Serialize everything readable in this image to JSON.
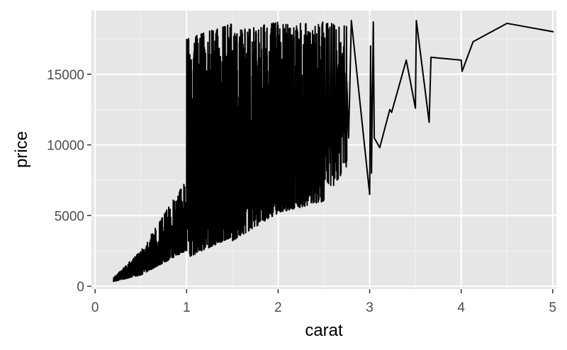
{
  "chart_data": {
    "type": "line",
    "xlabel": "carat",
    "ylabel": "price",
    "xlim": [
      -0.04,
      5.04
    ],
    "ylim": [
      -200,
      19500
    ],
    "x_ticks": [
      0,
      1,
      2,
      3,
      4,
      5
    ],
    "y_ticks": [
      0,
      5000,
      10000,
      15000
    ],
    "grid": true,
    "panel_background": "#e6e6e6",
    "line_color": "#000000",
    "dense_bands": [
      {
        "x_start": 0.2,
        "x_end": 0.5,
        "lower_start": 330,
        "lower_end": 800,
        "upper_start": 600,
        "upper_end": 2500,
        "cycles": 120
      },
      {
        "x_start": 0.5,
        "x_end": 0.99,
        "lower_start": 800,
        "lower_end": 2500,
        "upper_start": 2500,
        "upper_end": 7500,
        "cycles": 160
      },
      {
        "x_start": 1.0,
        "x_end": 1.5,
        "lower_start": 2000,
        "lower_end": 3500,
        "upper_start": 17500,
        "upper_end": 18600,
        "cycles": 190
      },
      {
        "x_start": 1.5,
        "x_end": 2.0,
        "lower_start": 3200,
        "lower_end": 5200,
        "upper_start": 18000,
        "upper_end": 18700,
        "cycles": 200
      },
      {
        "x_start": 2.0,
        "x_end": 2.5,
        "lower_start": 5200,
        "lower_end": 6000,
        "upper_start": 18500,
        "upper_end": 18700,
        "cycles": 180
      },
      {
        "x_start": 2.5,
        "x_end": 2.75,
        "lower_start": 6000,
        "lower_end": 8500,
        "upper_start": 18600,
        "upper_end": 18600,
        "cycles": 40
      }
    ],
    "tail": {
      "x": [
        2.75,
        2.77,
        2.8,
        3.0,
        3.01,
        3.02,
        3.04,
        3.05,
        3.11,
        3.22,
        3.24,
        3.4,
        3.5,
        3.51,
        3.65,
        3.67,
        4.0,
        4.01,
        4.13,
        4.5,
        5.01
      ],
      "y": [
        14500,
        10500,
        18800,
        6500,
        17000,
        8000,
        18700,
        10500,
        9800,
        12500,
        12300,
        16000,
        12600,
        18800,
        11600,
        16200,
        16000,
        15200,
        17300,
        18600,
        18000
      ]
    }
  }
}
